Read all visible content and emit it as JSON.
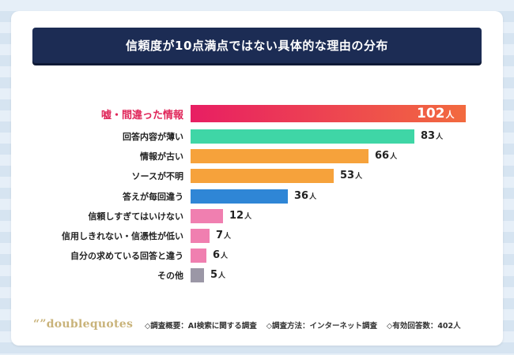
{
  "title": "信頼度が10点満点ではない具体的な理由の分布",
  "colors": {
    "highlight": "#e0275a",
    "pink_bar_gradient": [
      "#e81e63",
      "#f26a3f"
    ],
    "green": "#3fd6a6",
    "orange": "#f6a23b",
    "blue": "#2f86d6",
    "light_pink": "#f07fb0",
    "gray": "#9b97a6"
  },
  "chart_data": {
    "type": "bar",
    "orientation": "horizontal",
    "unit": "人",
    "categories": [
      "嘘・間違った情報",
      "回答内容が薄い",
      "情報が古い",
      "ソースが不明",
      "答えが毎回違う",
      "信頼しすぎてはいけない",
      "信用しきれない・信憑性が低い",
      "自分の求めている回答と違う",
      "その他"
    ],
    "values": [
      102,
      83,
      66,
      53,
      36,
      12,
      7,
      6,
      5
    ],
    "bar_colors": [
      "gradient",
      "#3fd6a6",
      "#f6a23b",
      "#f6a23b",
      "#2f86d6",
      "#f07fb0",
      "#f07fb0",
      "#f07fb0",
      "#9b97a6"
    ],
    "xlim": [
      0,
      102
    ]
  },
  "footer": {
    "logo": "“”doublequotes",
    "notes": [
      "◇調査概要：AI検索に関する調査",
      "◇調査方法：インターネット調査",
      "◇有効回答数：402人"
    ]
  }
}
